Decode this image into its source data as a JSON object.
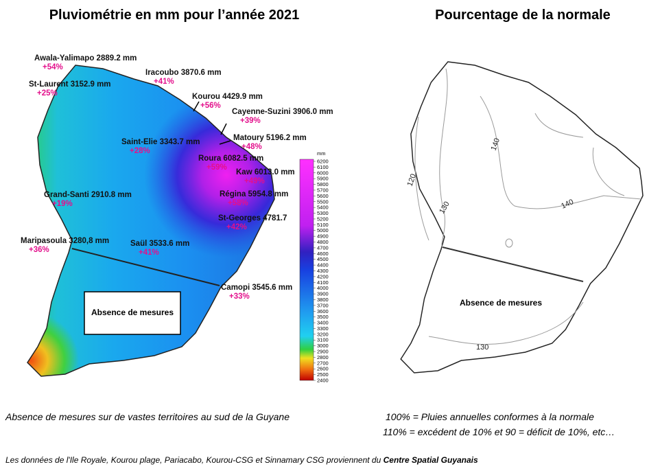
{
  "left_title": "Pluviométrie en mm  pour l’année 2021",
  "right_title": "Pourcentage de la normale",
  "stations": [
    {
      "label": "Awala-Yalimapo 2889.2 mm",
      "percent": "+54%"
    },
    {
      "label": "St-Laurent  3152.9 mm",
      "percent": "+25%"
    },
    {
      "label": "Iracoubo 3870.6 mm",
      "percent": "+41%"
    },
    {
      "label": "Kourou 4429.9 mm",
      "percent": "+56%"
    },
    {
      "label": "Cayenne-Suzini 3906.0 mm",
      "percent": "+39%"
    },
    {
      "label": "Saint-Elie 3343.7 mm",
      "percent": "+28%"
    },
    {
      "label": "Matoury 5196.2 mm",
      "percent": "+48%"
    },
    {
      "label": "Roura 6082.5 mm",
      "percent": "+59%"
    },
    {
      "label": "Kaw 6013.0 mm",
      "percent": "+49%"
    },
    {
      "label": "Régina 5954.8 mm",
      "percent": "+58%"
    },
    {
      "label": "Grand-Santi 2910.8 mm",
      "percent": "+19%"
    },
    {
      "label": "St-Georges  4781.7",
      "percent": "+42%"
    },
    {
      "label": "Maripasoula  3280,8 mm",
      "percent": "+36%"
    },
    {
      "label": "Saül 3533.6 mm",
      "percent": "+41%"
    },
    {
      "label": "Camopi 3545.6 mm",
      "percent": "+33%"
    }
  ],
  "colorbar": {
    "unit": "mm",
    "ticks": [
      6200,
      6100,
      6000,
      5900,
      5800,
      5700,
      5600,
      5500,
      5400,
      5300,
      5200,
      5100,
      5000,
      4900,
      4800,
      4700,
      4600,
      4500,
      4400,
      4300,
      4200,
      4100,
      4000,
      3900,
      3800,
      3700,
      3600,
      3500,
      3400,
      3300,
      3200,
      3100,
      3000,
      2900,
      2800,
      2700,
      2600,
      2500,
      2400
    ]
  },
  "no_data_left": "Absence de mesures",
  "no_data_right": "Absence de mesures",
  "contour_labels": [
    "140",
    "120",
    "130",
    "140",
    "130"
  ],
  "caption_left": "Absence de mesures sur de vastes territoires au sud de la Guyane",
  "caption_right_1": "100% = Pluies annuelles conformes à la normale",
  "caption_right_2": "110% = excédent de 10% et 90 = déficit de 10%, etc…",
  "footer": "Les données de l'Ile Royale, Kourou plage, Pariacabo, Kourou-CSG et Sinnamary CSG proviennent du ",
  "footer_source": "Centre Spatial Guyanais"
}
